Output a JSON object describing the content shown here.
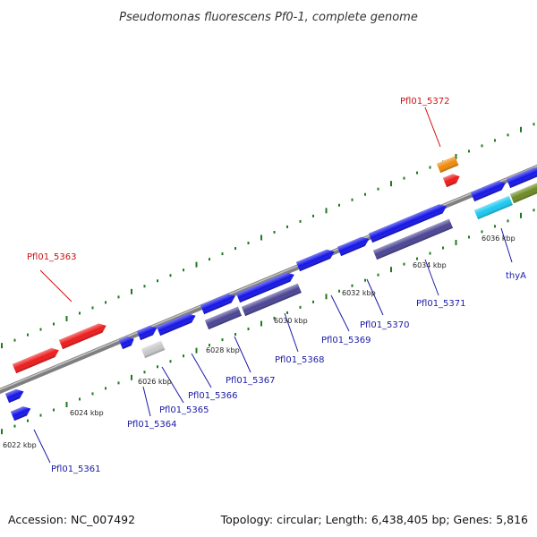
{
  "title": "Pseudomonas fluorescens Pf0-1, complete genome",
  "footer": {
    "accession": "Accession: NC_007492",
    "summary": "Topology: circular; Length: 6,438,405 bp; Genes: 5,816"
  },
  "colors": {
    "blue": "#1515e8",
    "red": "#ee1a1a",
    "navy": "#4a4494",
    "orange": "#f08a0a",
    "cyan": "#1ac8f0",
    "olive": "#6d8a22",
    "grey": "#c8c8c8",
    "label_blue": "#1a1aa8",
    "label_red": "#cc1111",
    "tick_green": "#1f7a1f",
    "backbone": "#8a8a8a"
  },
  "kbp_labels": [
    "6022 kbp",
    "6024 kbp",
    "6026 kbp",
    "6028 kbp",
    "6030 kbp",
    "6032 kbp",
    "6034 kbp",
    "6036 kbp"
  ],
  "gene_labels": [
    {
      "text": "Pfl01_5361",
      "color": "label_blue"
    },
    {
      "text": "Pfl01_5363",
      "color": "label_red"
    },
    {
      "text": "Pfl01_5364",
      "color": "label_blue"
    },
    {
      "text": "Pfl01_5365",
      "color": "label_blue"
    },
    {
      "text": "Pfl01_5366",
      "color": "label_blue"
    },
    {
      "text": "Pfl01_5367",
      "color": "label_blue"
    },
    {
      "text": "Pfl01_5368",
      "color": "label_blue"
    },
    {
      "text": "Pfl01_5369",
      "color": "label_blue"
    },
    {
      "text": "Pfl01_5370",
      "color": "label_blue"
    },
    {
      "text": "Pfl01_5371",
      "color": "label_blue"
    },
    {
      "text": "Pfl01_5372",
      "color": "label_red"
    },
    {
      "text": "thyA",
      "color": "label_blue"
    }
  ]
}
